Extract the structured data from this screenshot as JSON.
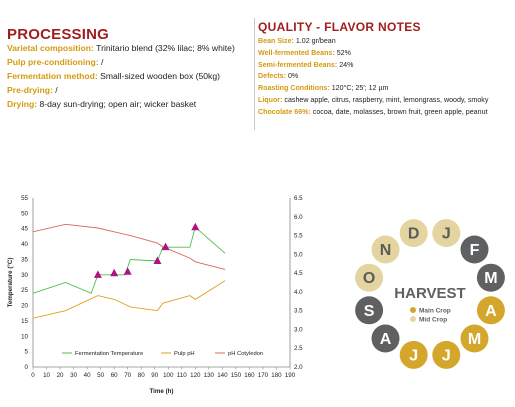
{
  "processing": {
    "title": "PROCESSING",
    "rows": [
      {
        "key": "Varietal composition:",
        "val": " Trinitario blend (32% lilac; 8% white)"
      },
      {
        "key": "Pulp pre-conditioning:",
        "val": " /"
      },
      {
        "key": "Fermentation method:",
        "val": " Small-sized wooden box (50kg)"
      },
      {
        "key": "Pre-drying:",
        "val": " /"
      },
      {
        "key": "Drying:",
        "val": " 8-day sun-drying; open air; wicker basket"
      }
    ]
  },
  "quality": {
    "title": "QUALITY - FLAVOR NOTES",
    "rows": [
      {
        "key": "Bean Size:",
        "val": " 1.02 gr/bean"
      },
      {
        "key": "Well-fermented Beans:",
        "val": " 52%"
      },
      {
        "key": "Semi-fermented Beans:",
        "val": " 24%"
      },
      {
        "key": "Defects:",
        "val": " 0%"
      },
      {
        "key": "Roasting Conditions:",
        "val": " 120°C; 25'; 12 µm"
      },
      {
        "key": "Liquor:",
        "val": " cashew apple, citrus, raspberry, mint, lemongrass, woody, smoky"
      },
      {
        "key": "Chocolate 66%:",
        "val": " cocoa, date, molasses, brown fruit, green apple, peanut"
      }
    ]
  },
  "chart_data": {
    "type": "line",
    "xlabel": "Time (h)",
    "ylabel": "Temperature (°C)",
    "y2label": "pH",
    "xlim": [
      0,
      190
    ],
    "ylim": [
      0,
      55
    ],
    "y2lim": [
      2.0,
      6.5
    ],
    "x_ticks": [
      0,
      10,
      20,
      30,
      40,
      50,
      60,
      70,
      80,
      90,
      100,
      110,
      120,
      130,
      140,
      150,
      160,
      170,
      180,
      190
    ],
    "y_ticks": [
      0,
      5,
      10,
      15,
      20,
      25,
      30,
      35,
      40,
      45,
      50,
      55
    ],
    "y2_ticks": [
      "2.0",
      "2.5",
      "3.0",
      "3.5",
      "4.0",
      "4.5",
      "5.0",
      "5.5",
      "6.0",
      "6.5"
    ],
    "series": [
      {
        "name": "Fermentation Temperature",
        "axis": "left",
        "color": "#4cbf4c",
        "x": [
          0,
          24,
          43,
          48,
          60,
          68,
          72,
          92,
          96,
          116,
          120,
          142
        ],
        "y": [
          24,
          27.5,
          24,
          30,
          30,
          30,
          35,
          34.5,
          39,
          39,
          45.5,
          37
        ]
      },
      {
        "name": "Pulp pH",
        "axis": "right",
        "color": "#e0a020",
        "x": [
          0,
          24,
          48,
          60,
          72,
          92,
          96,
          116,
          120,
          142
        ],
        "y": [
          3.3,
          3.5,
          3.9,
          3.8,
          3.6,
          3.5,
          3.7,
          3.9,
          3.8,
          4.3
        ]
      },
      {
        "name": "pH Cotyledon",
        "axis": "right",
        "color": "#d86a5a",
        "x": [
          0,
          24,
          48,
          60,
          72,
          92,
          96,
          116,
          120,
          142
        ],
        "y": [
          5.6,
          5.8,
          5.7,
          5.6,
          5.5,
          5.3,
          5.2,
          4.9,
          4.8,
          4.6
        ]
      }
    ],
    "markers": {
      "color": "#b0127f",
      "points": [
        {
          "x": 48,
          "y": 30
        },
        {
          "x": 60,
          "y": 30.5
        },
        {
          "x": 70,
          "y": 31
        },
        {
          "x": 92,
          "y": 34.5
        },
        {
          "x": 98,
          "y": 39
        },
        {
          "x": 120,
          "y": 45.5
        }
      ]
    }
  },
  "harvest": {
    "label": "HARVEST",
    "legend": [
      {
        "label": "Main Crop",
        "color": "#d4a72c"
      },
      {
        "label": "Mid Crop",
        "color": "#e6d7a2"
      }
    ],
    "months": [
      {
        "letter": "J",
        "type": "mid",
        "color": "#e4d5a0",
        "text": "#5b5b5b"
      },
      {
        "letter": "F",
        "type": "none",
        "color": "#5f6062",
        "text": "#ffffff"
      },
      {
        "letter": "M",
        "type": "none",
        "color": "#5f6062",
        "text": "#ffffff"
      },
      {
        "letter": "A",
        "type": "main",
        "color": "#d4a72c",
        "text": "#ffffff"
      },
      {
        "letter": "M",
        "type": "main",
        "color": "#d4a72c",
        "text": "#ffffff"
      },
      {
        "letter": "J",
        "type": "main",
        "color": "#d4a72c",
        "text": "#ffffff"
      },
      {
        "letter": "J",
        "type": "main",
        "color": "#d4a72c",
        "text": "#ffffff"
      },
      {
        "letter": "A",
        "type": "none",
        "color": "#5f6062",
        "text": "#ffffff"
      },
      {
        "letter": "S",
        "type": "none",
        "color": "#5f6062",
        "text": "#ffffff"
      },
      {
        "letter": "O",
        "type": "mid",
        "color": "#e4d5a0",
        "text": "#5b5b5b"
      },
      {
        "letter": "N",
        "type": "mid",
        "color": "#e4d5a0",
        "text": "#5b5b5b"
      },
      {
        "letter": "D",
        "type": "mid",
        "color": "#e4d5a0",
        "text": "#5b5b5b"
      }
    ]
  }
}
